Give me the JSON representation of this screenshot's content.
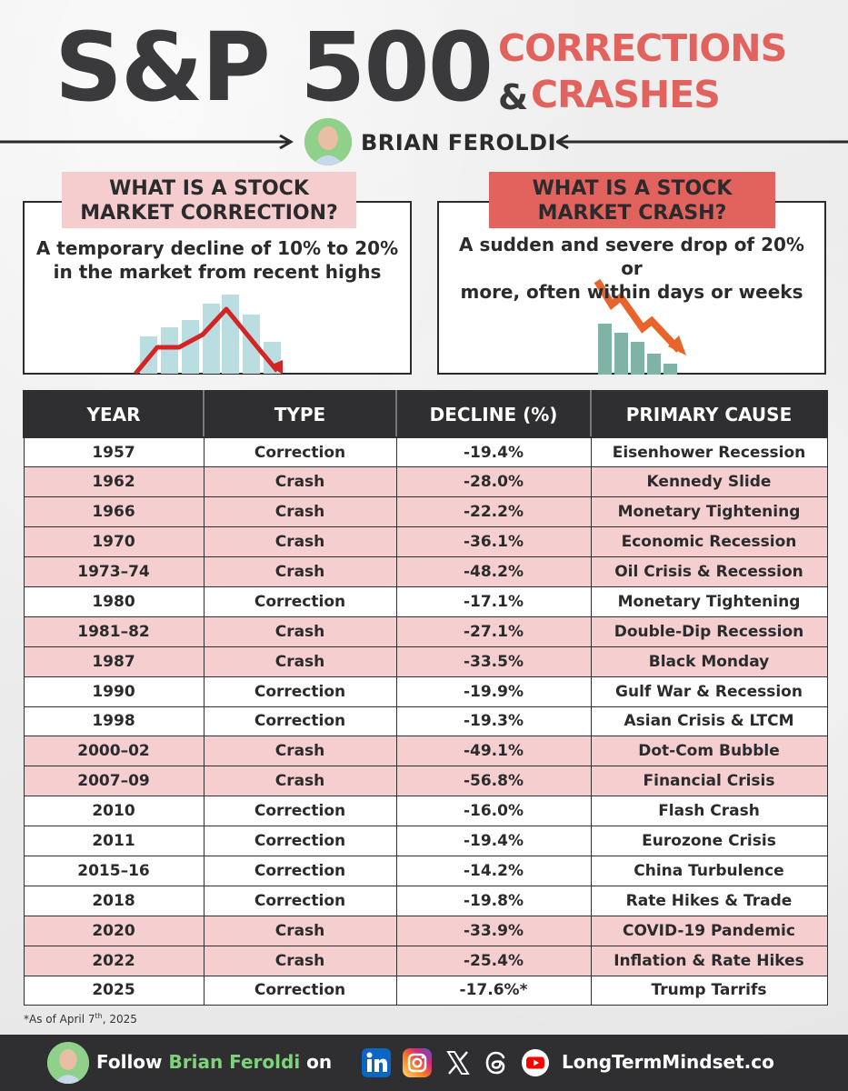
{
  "header": {
    "title_main": "S&P 500",
    "title_sub1": "CORRECTIONS",
    "ampersand": "&",
    "title_sub2": "CRASHES",
    "author": "BRIAN FEROLDI"
  },
  "definitions": {
    "correction": {
      "label_line1": "WHAT IS A STOCK",
      "label_line2": "MARKET CORRECTION?",
      "text_line1": "A temporary decline of 10% to 20%",
      "text_line2": "in the market from recent highs"
    },
    "crash": {
      "label_line1": "WHAT IS A STOCK",
      "label_line2": "MARKET CRASH?",
      "text_line1": "A sudden and severe drop of 20% or",
      "text_line2": "more, often within days or weeks"
    }
  },
  "table": {
    "headers": [
      "YEAR",
      "TYPE",
      "DECLINE (%)",
      "PRIMARY CAUSE"
    ],
    "rows": [
      {
        "year": "1957",
        "type": "Correction",
        "decline": "-19.4%",
        "cause": "Eisenhower Recession"
      },
      {
        "year": "1962",
        "type": "Crash",
        "decline": "-28.0%",
        "cause": "Kennedy Slide"
      },
      {
        "year": "1966",
        "type": "Crash",
        "decline": "-22.2%",
        "cause": "Monetary Tightening"
      },
      {
        "year": "1970",
        "type": "Crash",
        "decline": "-36.1%",
        "cause": "Economic Recession"
      },
      {
        "year": "1973–74",
        "type": "Crash",
        "decline": "-48.2%",
        "cause": "Oil Crisis & Recession"
      },
      {
        "year": "1980",
        "type": "Correction",
        "decline": "-17.1%",
        "cause": "Monetary Tightening"
      },
      {
        "year": "1981–82",
        "type": "Crash",
        "decline": "-27.1%",
        "cause": "Double-Dip Recession"
      },
      {
        "year": "1987",
        "type": "Crash",
        "decline": "-33.5%",
        "cause": "Black Monday"
      },
      {
        "year": "1990",
        "type": "Correction",
        "decline": "-19.9%",
        "cause": "Gulf War & Recession"
      },
      {
        "year": "1998",
        "type": "Correction",
        "decline": "-19.3%",
        "cause": "Asian Crisis & LTCM"
      },
      {
        "year": "2000–02",
        "type": "Crash",
        "decline": "-49.1%",
        "cause": "Dot-Com Bubble"
      },
      {
        "year": "2007–09",
        "type": "Crash",
        "decline": "-56.8%",
        "cause": "Financial Crisis"
      },
      {
        "year": "2010",
        "type": "Correction",
        "decline": "-16.0%",
        "cause": "Flash Crash"
      },
      {
        "year": "2011",
        "type": "Correction",
        "decline": "-19.4%",
        "cause": "Eurozone Crisis"
      },
      {
        "year": "2015–16",
        "type": "Correction",
        "decline": "-14.2%",
        "cause": "China Turbulence"
      },
      {
        "year": "2018",
        "type": "Correction",
        "decline": "-19.8%",
        "cause": "Rate Hikes & Trade"
      },
      {
        "year": "2020",
        "type": "Crash",
        "decline": "-33.9%",
        "cause": "COVID-19 Pandemic"
      },
      {
        "year": "2022",
        "type": "Crash",
        "decline": "-25.4%",
        "cause": "Inflation & Rate Hikes"
      },
      {
        "year": "2025",
        "type": "Correction",
        "decline": "-17.6%*",
        "cause": "Trump Tarrifs"
      }
    ]
  },
  "footnote": {
    "prefix": "*As of April 7",
    "sup": "th",
    "suffix": ", 2025"
  },
  "footer": {
    "follow_prefix": "Follow ",
    "follow_name": "Brian Feroldi",
    "follow_suffix": " on",
    "social_icons": [
      "linkedin-icon",
      "instagram-icon",
      "x-icon",
      "threads-icon",
      "youtube-icon"
    ],
    "website": "LongTermMindset.co"
  },
  "colors": {
    "accent_red": "#e2625d",
    "crash_row": "#f5cfd0",
    "dark": "#2f2f32",
    "follow_name": "#7fd27c"
  }
}
